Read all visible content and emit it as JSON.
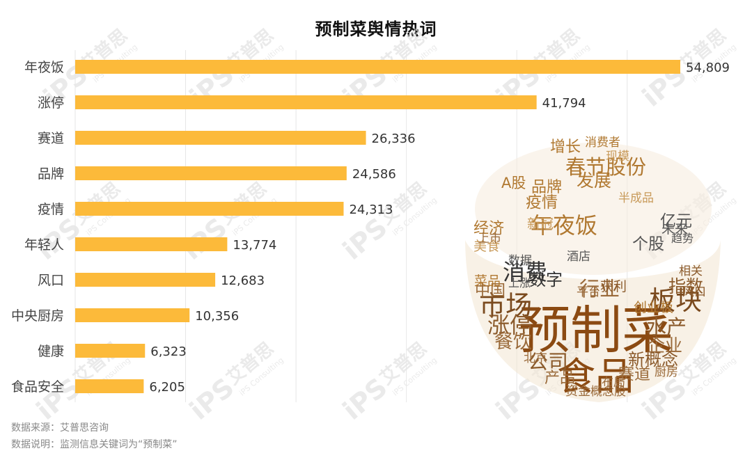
{
  "chart_data": {
    "type": "bar",
    "orientation": "horizontal",
    "title": "预制菜舆情热词",
    "categories": [
      "年夜饭",
      "涨停",
      "赛道",
      "品牌",
      "疫情",
      "年轻人",
      "风口",
      "中央厨房",
      "健康",
      "食品安全"
    ],
    "values": [
      54809,
      41794,
      26336,
      24586,
      24313,
      13774,
      12683,
      10356,
      6323,
      6205
    ],
    "value_labels": [
      "54,809",
      "41,794",
      "26,336",
      "24,586",
      "24,313",
      "13,774",
      "12,683",
      "10,356",
      "6,323",
      "6,205"
    ],
    "xlim": [
      0,
      60000
    ],
    "grid": true,
    "bar_color": "#FCBA3A"
  },
  "word_cloud": {
    "words": [
      {
        "text": "预制菜",
        "weight": 10,
        "color": "#8B4A12"
      },
      {
        "text": "食品",
        "weight": 7,
        "color": "#8B4A12"
      },
      {
        "text": "板块",
        "weight": 4.5,
        "color": "#7A4A1E"
      },
      {
        "text": "市场",
        "weight": 4.5,
        "color": "#7A4A1E"
      },
      {
        "text": "涨停",
        "weight": 3.5,
        "color": "#8B5A2B"
      },
      {
        "text": "年夜饭",
        "weight": 3.5,
        "color": "#B07830"
      },
      {
        "text": "消费",
        "weight": 3.5,
        "color": "#333333"
      },
      {
        "text": "行业",
        "weight": 3,
        "color": "#9A6A3A"
      },
      {
        "text": "水产",
        "weight": 3,
        "color": "#8B5A2B"
      },
      {
        "text": "公司",
        "weight": 3,
        "color": "#8B5A2B"
      },
      {
        "text": "股份",
        "weight": 3,
        "color": "#B07830"
      },
      {
        "text": "春节",
        "weight": 3,
        "color": "#B07830"
      },
      {
        "text": "餐饮",
        "weight": 2.8,
        "color": "#9A6A3A"
      },
      {
        "text": "企业",
        "weight": 2.5,
        "color": "#9A6A3A"
      },
      {
        "text": "新概念",
        "weight": 2.3,
        "color": "#8B5A2B"
      },
      {
        "text": "指数",
        "weight": 2.5,
        "color": "#8B5A2B"
      },
      {
        "text": "发展",
        "weight": 2.5,
        "color": "#B07830"
      },
      {
        "text": "数字",
        "weight": 2.3,
        "color": "#333333"
      },
      {
        "text": "亿元",
        "weight": 2.2,
        "color": "#555555"
      },
      {
        "text": "个股",
        "weight": 2.2,
        "color": "#555555"
      },
      {
        "text": "疫情",
        "weight": 2.2,
        "color": "#B07830"
      },
      {
        "text": "品牌",
        "weight": 2,
        "color": "#B07830"
      },
      {
        "text": "赛道",
        "weight": 2.2,
        "color": "#9A6A3A"
      },
      {
        "text": "增长",
        "weight": 2,
        "color": "#B07830"
      },
      {
        "text": "经济",
        "weight": 2,
        "color": "#B07830"
      },
      {
        "text": "中国",
        "weight": 2,
        "color": "#9A6A3A"
      },
      {
        "text": "产品",
        "weight": 2,
        "color": "#9A6A3A"
      },
      {
        "text": "A股",
        "weight": 1.8,
        "color": "#B07830"
      },
      {
        "text": "新冠",
        "weight": 1.6,
        "color": "#C89A5A"
      },
      {
        "text": "菜品",
        "weight": 1.6,
        "color": "#B07830"
      },
      {
        "text": "创业板",
        "weight": 1.6,
        "color": "#B07830"
      },
      {
        "text": "未来",
        "weight": 1.5,
        "color": "#555555"
      },
      {
        "text": "美食",
        "weight": 1.5,
        "color": "#C89A5A"
      },
      {
        "text": "获利",
        "weight": 1.5,
        "color": "#8B5A2B"
      },
      {
        "text": "资金",
        "weight": 1.4,
        "color": "#9A6A3A"
      },
      {
        "text": "概念股",
        "weight": 1.3,
        "color": "#9A6A3A"
      },
      {
        "text": "消费者",
        "weight": 1.3,
        "color": "#B07830"
      },
      {
        "text": "现模",
        "weight": 1.3,
        "color": "#C89A5A"
      },
      {
        "text": "半成品",
        "weight": 1.2,
        "color": "#C89A5A"
      },
      {
        "text": "上市",
        "weight": 1.2,
        "color": "#9A6A3A"
      },
      {
        "text": "相关",
        "weight": 1.3,
        "color": "#8B5A2B"
      },
      {
        "text": "风口",
        "weight": 1.3,
        "color": "#8B5A2B"
      },
      {
        "text": "平台",
        "weight": 1.3,
        "color": "#9A6A3A"
      },
      {
        "text": "布局",
        "weight": 1.2,
        "color": "#9A6A3A"
      },
      {
        "text": "厨房",
        "weight": 1.2,
        "color": "#9A6A3A"
      },
      {
        "text": "北京",
        "weight": 1.2,
        "color": "#9A6A3A"
      },
      {
        "text": "数据",
        "weight": 1.2,
        "color": "#555555"
      },
      {
        "text": "酒店",
        "weight": 1.2,
        "color": "#555555"
      },
      {
        "text": "趋势",
        "weight": 1.1,
        "color": "#555555"
      },
      {
        "text": "上涨",
        "weight": 1.1,
        "color": "#555555"
      }
    ]
  },
  "watermark": {
    "cn": "艾普思",
    "latin": "iPS",
    "en": "iPS Consulting"
  },
  "footer": {
    "source": "数据来源：艾普思咨询",
    "note": "数据说明：监测信息关键词为“预制菜”"
  }
}
